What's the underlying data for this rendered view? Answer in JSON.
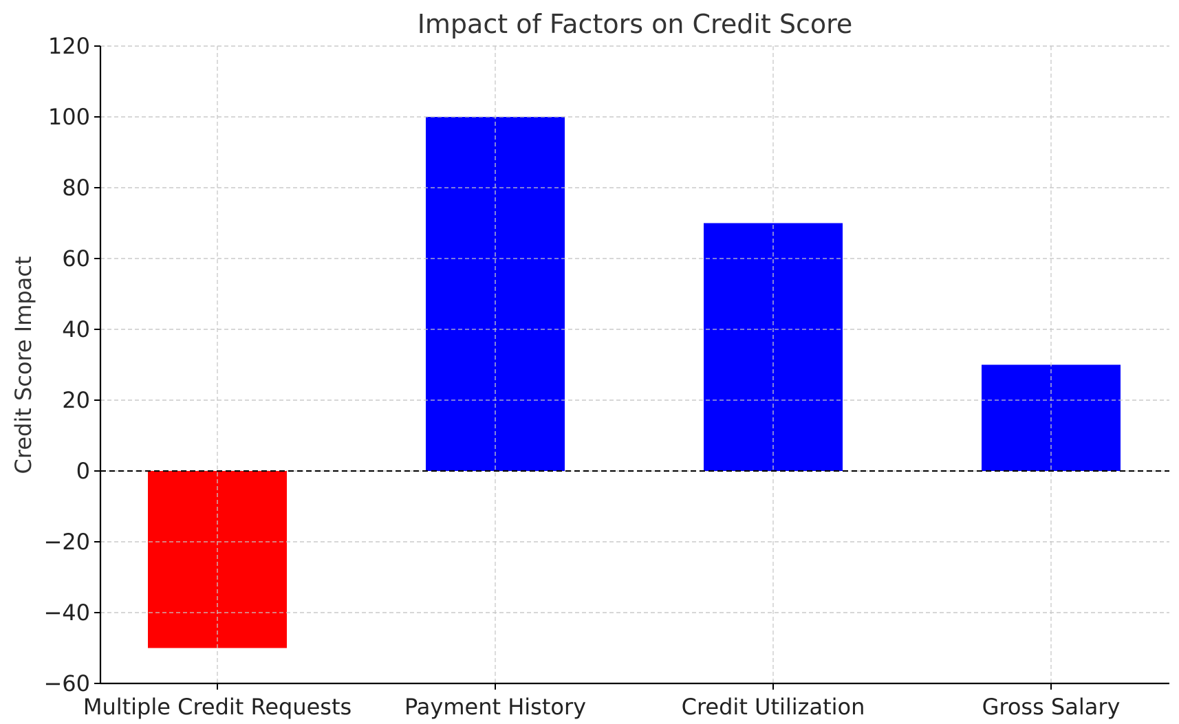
{
  "chart_data": {
    "type": "bar",
    "title": "Impact of Factors on Credit Score",
    "xlabel": "",
    "ylabel": "Credit Score Impact",
    "categories": [
      "Multiple Credit Requests",
      "Payment History",
      "Credit Utilization",
      "Gross Salary"
    ],
    "values": [
      -50,
      100,
      70,
      30
    ],
    "colors": [
      "#ff0000",
      "#0000ff",
      "#0000ff",
      "#0000ff"
    ],
    "ylim": [
      -60,
      120
    ],
    "yticks": [
      -60,
      -40,
      -20,
      0,
      20,
      40,
      60,
      80,
      100,
      120
    ],
    "ytick_labels": [
      "−60",
      "−40",
      "−20",
      "0",
      "20",
      "40",
      "60",
      "80",
      "100",
      "120"
    ],
    "grid": true,
    "reference_line": 0
  }
}
